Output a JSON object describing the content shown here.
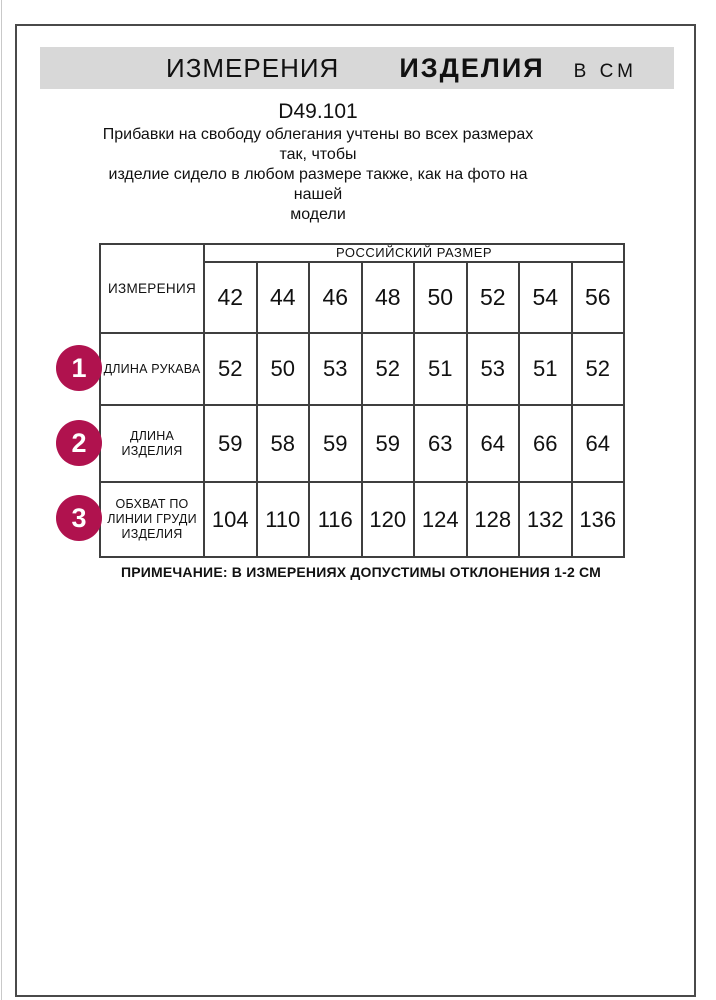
{
  "header": {
    "title_word1": "ИЗМЕРЕНИЯ",
    "title_word2": "ИЗДЕЛИЯ",
    "unit": "В СМ"
  },
  "intro": {
    "article_code": "D49.101",
    "description": "Прибавки на свободу облегания учтены во всех размерах так, чтобы\nизделие сидело в любом размере также, как на фото на нашей\nмодели"
  },
  "table": {
    "measurements_header": "ИЗМЕРЕНИЯ",
    "size_group_header": "РОССИЙСКИЙ РАЗМЕР",
    "sizes": [
      "42",
      "44",
      "46",
      "48",
      "50",
      "52",
      "54",
      "56"
    ],
    "rows": [
      {
        "num": "1",
        "label": "ДЛИНА РУКАВА",
        "values": [
          "52",
          "50",
          "53",
          "52",
          "51",
          "53",
          "51",
          "52"
        ]
      },
      {
        "num": "2",
        "label": "ДЛИНА\nИЗДЕЛИЯ",
        "values": [
          "59",
          "58",
          "59",
          "59",
          "63",
          "64",
          "66",
          "64"
        ]
      },
      {
        "num": "3",
        "label": "ОБХВАТ ПО\nЛИНИИ ГРУДИ\nИЗДЕЛИЯ",
        "values": [
          "104",
          "110",
          "116",
          "120",
          "124",
          "128",
          "132",
          "136"
        ]
      }
    ]
  },
  "note": "ПРИМЕЧАНИЕ: В ИЗМЕРЕНИЯХ ДОПУСТИМЫ ОТКЛОНЕНИЯ 1-2 СМ",
  "colors": {
    "marker": "#b0124e",
    "banner_bg": "#d8d8d8",
    "table_border": "#3f3f3f"
  }
}
